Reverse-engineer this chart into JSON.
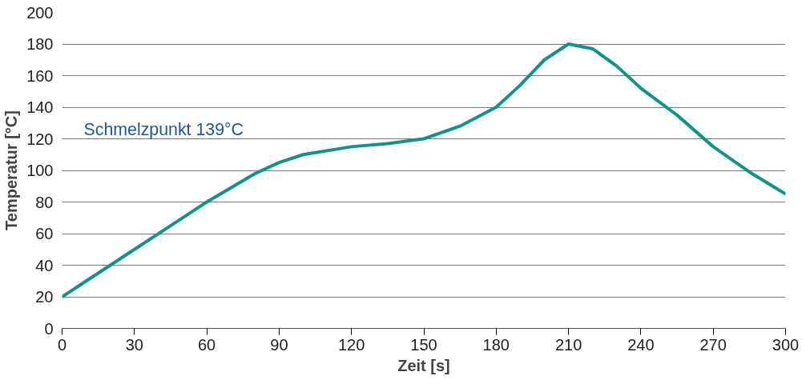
{
  "chart_data": {
    "type": "line",
    "xlabel": "Zeit [s]",
    "ylabel": "Temperatur [°C]",
    "annotations": [
      "Schmelzpunkt 139°C"
    ],
    "x": [
      0,
      10,
      30,
      45,
      60,
      80,
      90,
      100,
      120,
      135,
      150,
      165,
      180,
      190,
      200,
      210,
      220,
      230,
      240,
      255,
      270,
      285,
      300
    ],
    "series": [
      {
        "color": "#0f9487",
        "values": [
          20,
          30,
          50,
          65,
          80,
          98,
          105,
          110,
          115,
          117,
          120,
          128,
          140,
          154,
          170,
          180,
          177,
          166,
          152,
          135,
          115,
          99,
          85
        ]
      }
    ],
    "xlim": [
      0,
      300
    ],
    "xticks": [
      0,
      30,
      60,
      90,
      120,
      150,
      180,
      210,
      240,
      270,
      300
    ],
    "ylim": [
      0,
      200
    ],
    "yticks": [
      0,
      20,
      40,
      60,
      80,
      100,
      120,
      140,
      160,
      180,
      200
    ],
    "grid": "y",
    "marker": "none",
    "line_style": "solid"
  }
}
